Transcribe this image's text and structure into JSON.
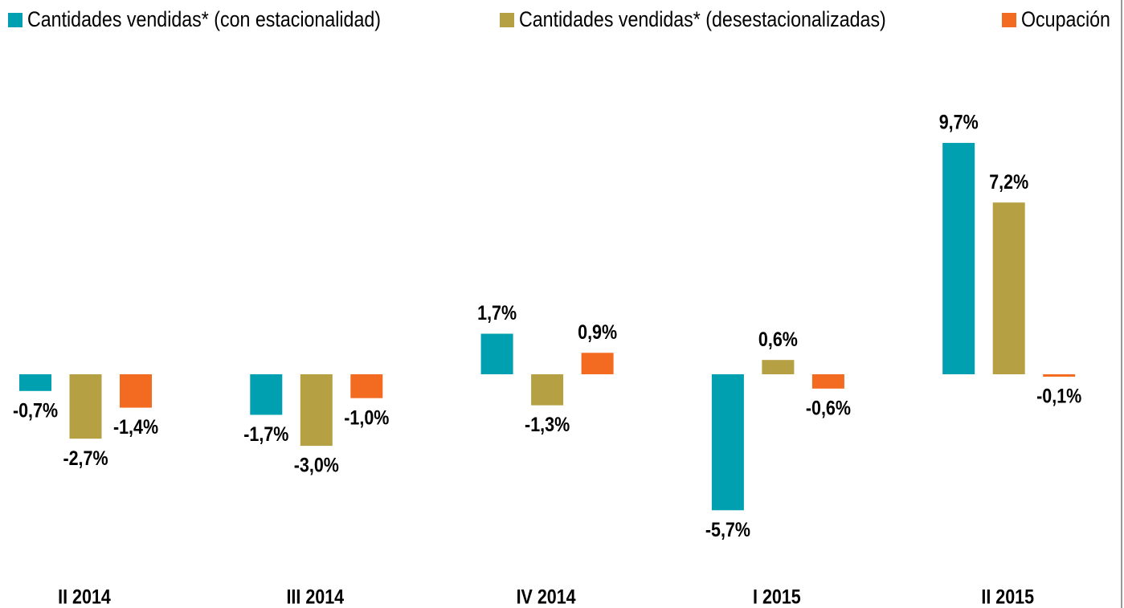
{
  "chart_data": {
    "type": "bar",
    "categories": [
      "II 2014",
      "III 2014",
      "IV 2014",
      "I 2015",
      "II 2015"
    ],
    "series": [
      {
        "name": "Cantidades vendidas* (con estacionalidad)",
        "color": "#00a0b0",
        "values": [
          -0.7,
          -1.7,
          1.7,
          -5.7,
          9.7
        ],
        "value_labels": [
          "-0,7%",
          "-1,7%",
          "1,7%",
          "-5,7%",
          "9,7%"
        ]
      },
      {
        "name": "Cantidades vendidas* (desestacionalizadas)",
        "color": "#b5a043",
        "values": [
          -2.7,
          -3.0,
          -1.3,
          0.6,
          7.2
        ],
        "value_labels": [
          "-2,7%",
          "-3,0%",
          "-1,3%",
          "0,6%",
          "7,2%"
        ]
      },
      {
        "name": "Ocupación",
        "color": "#f26b21",
        "values": [
          -1.4,
          -1.0,
          0.9,
          -0.6,
          -0.1
        ],
        "value_labels": [
          "-1,4%",
          "-1,0%",
          "0,9%",
          "-0,6%",
          "-0,1%"
        ]
      }
    ]
  }
}
